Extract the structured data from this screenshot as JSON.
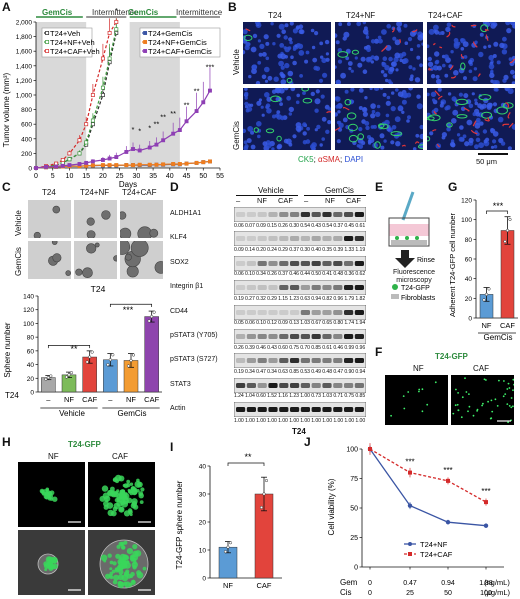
{
  "panels": {
    "A": {
      "label": "A",
      "phases": [
        "GemCis",
        "Intermittence",
        "GemCis",
        "Intermittence"
      ],
      "ylabel": "Tumor volume (mm³)",
      "xlabel": "Days",
      "legend_left": [
        "T24+Veh",
        "T24+NF+Veh",
        "T24+CAF+Veh"
      ],
      "legend_right": [
        "T24+GemCis",
        "T24+NF+GemCis",
        "T24+CAF+GemCis"
      ],
      "xticks": [
        "0",
        "5",
        "10",
        "15",
        "20",
        "25",
        "30",
        "35",
        "40",
        "45",
        "50",
        "55"
      ],
      "yticks": [
        "0",
        "200",
        "400",
        "600",
        "800",
        "1,000",
        "1,200",
        "1,400",
        "1,600",
        "1,800",
        "2,000"
      ],
      "stars": [
        "*",
        "*",
        "*",
        "*",
        "**",
        "**",
        "**",
        "**",
        "**",
        "***"
      ]
    },
    "B": {
      "label": "B",
      "columns": [
        "T24",
        "T24+NF",
        "T24+CAF"
      ],
      "rows": [
        "Vehicle",
        "GemCis"
      ],
      "legend_ck5": "CK5",
      "legend_sep1": "; ",
      "legend_asma": "αSMA",
      "legend_sep2": "; ",
      "legend_dapi": "DAPI",
      "scale": "50 μm"
    },
    "C": {
      "label": "C",
      "columns": [
        "T24",
        "T24+NF",
        "T24+CAF"
      ],
      "rows": [
        "Vehicle",
        "GemCis"
      ],
      "bar_title": "T24",
      "ylabel": "Sphere number",
      "yticks": [
        "0",
        "20",
        "40",
        "60",
        "80",
        "100",
        "120",
        "140"
      ],
      "row_label": "T24",
      "cat_labels": [
        "–",
        "NF",
        "CAF",
        "–",
        "NF",
        "CAF"
      ],
      "groups": [
        "Vehicle",
        "GemCis"
      ],
      "stars_left": "**",
      "stars_right": "***"
    },
    "D": {
      "label": "D",
      "group_vehicle": "Vehicle",
      "group_gemcis": "GemCis",
      "lanes": [
        "–",
        "NF",
        "CAF",
        "–",
        "NF",
        "CAF"
      ],
      "cell_line": "T24",
      "blots": [
        {
          "name": "ALDH1A1",
          "values": "0.06 0.07 0.09 0.15 0.26 0.30 0.54 0.43 0.54 0.37 0.45 0.61"
        },
        {
          "name": "KLF4",
          "values": "0.09 0.14 0.20 0.24 0.29 0.37 0.30 0.40 0.35 0.39 1.33 1.19"
        },
        {
          "name": "SOX2",
          "values": "0.06 0.10 0.34 0.26 0.37 0.46 0.44 0.50 0.41 0.48 0.36 0.62"
        },
        {
          "name": "Integrin β1",
          "values": "0.19 0.27 0.32 0.29 1.15 1.23 0.63 0.94 0.82 0.96 1.79 1.82"
        },
        {
          "name": "CD44",
          "values": "0.05 0.06 0.10 0.12 0.09 0.13 1.03 0.67 0.65 0.80 1.74 1.94"
        },
        {
          "name": "pSTAT3 (Y705)",
          "values": "0.26 0.39 0.46 0.43 0.60 0.75 0.70 0.85 0.61 0.46 0.99 0.96"
        },
        {
          "name": "pSTAT3 (S727)",
          "values": "0.19 0.34 0.47 0.34 0.63 0.85 0.53 0.49 0.48 0.47 0.90 0.94"
        },
        {
          "name": "STAT3",
          "values": "1.24 1.04 0.60 1.52 1.16 1.23 1.00 0.73 1.03 0.71 0.75 0.85"
        },
        {
          "name": "Actin",
          "values": "1.00 1.00 1.00 1.00 1.00 1.00 1.00 1.00 1.00 1.00 1.00 1.00"
        }
      ]
    },
    "E": {
      "label": "E",
      "rinse": "Rinse",
      "step": "Fluorescence microscopy",
      "legend_gfp": "T24-GFP",
      "legend_fib": "Fibroblasts"
    },
    "F": {
      "label": "F",
      "title": "T24-GFP",
      "columns": [
        "NF",
        "CAF"
      ]
    },
    "G": {
      "label": "G",
      "ylabel": "Adherent T24-GFP cell number",
      "yticks": [
        "0",
        "20",
        "40",
        "60",
        "80",
        "100",
        "120"
      ],
      "categories": [
        "NF",
        "CAF"
      ],
      "group": "GemCis",
      "stars": "***"
    },
    "H": {
      "label": "H",
      "title": "T24-GFP",
      "columns": [
        "NF",
        "CAF"
      ]
    },
    "I": {
      "label": "I",
      "ylabel": "T24-GFP sphere number",
      "yticks": [
        "0",
        "10",
        "20",
        "30",
        "40"
      ],
      "categories": [
        "NF",
        "CAF"
      ],
      "stars": "**"
    },
    "J": {
      "label": "J",
      "ylabel": "Cell viability (%)",
      "yticks": [
        "0",
        "25",
        "50",
        "75",
        "100"
      ],
      "legend": [
        "T24+NF",
        "T24+CAF"
      ],
      "gem_label": "Gem",
      "cis_label": "Cis",
      "gem_ticks": [
        "0",
        "0.47",
        "0.94",
        "1.88"
      ],
      "cis_ticks": [
        "0",
        "25",
        "50",
        "100"
      ],
      "gem_unit": "(ng/mL)",
      "cis_unit": "(μg/mL)",
      "stars": [
        "***",
        "***",
        "***"
      ]
    }
  },
  "colors": {
    "veh": "#2b2b2b",
    "nf_veh": "#3d9a3d",
    "caf_veh": "#d42a2a",
    "gemcis": "#3a55a4",
    "nf_gemcis": "#ee7d1e",
    "caf_gemcis": "#8e3fb4",
    "bar_ctrl": "#a8a8a8",
    "bar_nf": "#7dbb5a",
    "bar_caf": "#e2443c",
    "bar_gem": "#5b9bd5",
    "bar_gem_nf": "#f39c32",
    "bar_gem_caf": "#8e44ad"
  },
  "chart_data": [
    {
      "type": "line",
      "panel": "A",
      "xlabel": "Days",
      "ylabel": "Tumor volume (mm³)",
      "xlim": [
        0,
        55
      ],
      "ylim": [
        0,
        2000
      ],
      "series": [
        {
          "name": "T24+Veh",
          "x": [
            0,
            3,
            6,
            8,
            10,
            13,
            15,
            17,
            20,
            22,
            24
          ],
          "y": [
            0,
            20,
            40,
            70,
            120,
            200,
            320,
            600,
            1000,
            1450,
            1850
          ],
          "err": [
            0,
            5,
            10,
            15,
            25,
            40,
            60,
            100,
            150,
            200,
            250
          ]
        },
        {
          "name": "T24+NF+Veh",
          "x": [
            0,
            3,
            6,
            8,
            10,
            13,
            15,
            17,
            20,
            22,
            24
          ],
          "y": [
            0,
            20,
            40,
            70,
            120,
            200,
            350,
            650,
            1100,
            1500,
            1900
          ],
          "err": [
            0,
            5,
            10,
            15,
            25,
            40,
            60,
            100,
            150,
            200,
            250
          ]
        },
        {
          "name": "T24+CAF+Veh",
          "x": [
            0,
            3,
            6,
            8,
            10,
            13,
            15,
            17,
            20,
            22,
            24
          ],
          "y": [
            0,
            25,
            60,
            110,
            200,
            380,
            600,
            1000,
            1500,
            1850,
            2000
          ],
          "err": [
            0,
            5,
            10,
            20,
            40,
            70,
            100,
            150,
            200,
            200,
            200
          ]
        },
        {
          "name": "T24+GemCis",
          "x": [
            0,
            3,
            6,
            8,
            10,
            13,
            15,
            17,
            20,
            22,
            24,
            27,
            29,
            31,
            34,
            36,
            38,
            41,
            43,
            45,
            48,
            50,
            52
          ],
          "y": [
            0,
            10,
            15,
            20,
            25,
            25,
            30,
            30,
            35,
            35,
            35,
            40,
            40,
            40,
            40,
            45,
            45,
            50,
            50,
            60,
            70,
            80,
            90
          ],
          "err": [
            0,
            3,
            3,
            4,
            5,
            5,
            5,
            5,
            6,
            6,
            6,
            6,
            6,
            6,
            6,
            7,
            7,
            8,
            8,
            10,
            12,
            14,
            16
          ]
        },
        {
          "name": "T24+NF+GemCis",
          "x": [
            0,
            3,
            6,
            8,
            10,
            13,
            15,
            17,
            20,
            22,
            24,
            27,
            29,
            31,
            34,
            36,
            38,
            41,
            43,
            45,
            48,
            50,
            52
          ],
          "y": [
            0,
            10,
            15,
            20,
            25,
            25,
            30,
            35,
            40,
            40,
            40,
            40,
            40,
            45,
            45,
            45,
            50,
            55,
            55,
            60,
            70,
            80,
            90
          ],
          "err": [
            0,
            3,
            3,
            4,
            5,
            5,
            5,
            5,
            6,
            6,
            6,
            6,
            6,
            6,
            6,
            7,
            7,
            8,
            8,
            10,
            12,
            14,
            16
          ]
        },
        {
          "name": "T24+CAF+GemCis",
          "x": [
            0,
            3,
            6,
            8,
            10,
            13,
            15,
            17,
            20,
            22,
            24,
            27,
            29,
            31,
            34,
            36,
            38,
            41,
            43,
            45,
            48,
            50,
            52
          ],
          "y": [
            0,
            15,
            20,
            30,
            40,
            55,
            70,
            90,
            110,
            130,
            150,
            220,
            260,
            240,
            280,
            320,
            380,
            470,
            520,
            640,
            780,
            900,
            1060
          ],
          "err": [
            0,
            5,
            8,
            10,
            12,
            15,
            20,
            30,
            40,
            50,
            60,
            80,
            90,
            80,
            90,
            100,
            120,
            150,
            170,
            200,
            250,
            280,
            320
          ]
        }
      ]
    },
    {
      "type": "bar",
      "panel": "C",
      "title": "T24",
      "ylabel": "Sphere number",
      "categories": [
        "–",
        "NF",
        "CAF",
        "–",
        "NF",
        "CAF"
      ],
      "groups": [
        "Vehicle",
        "Vehicle",
        "Vehicle",
        "GemCis",
        "GemCis",
        "GemCis"
      ],
      "values": [
        21,
        25,
        51,
        47,
        46,
        110
      ],
      "err": [
        3,
        4,
        9,
        9,
        10,
        8
      ],
      "ylim": [
        0,
        140
      ]
    },
    {
      "type": "bar",
      "panel": "G",
      "ylabel": "Adherent T24-GFP cell number",
      "categories": [
        "NF",
        "CAF"
      ],
      "values": [
        24,
        89
      ],
      "err": [
        7,
        14
      ],
      "ylim": [
        0,
        120
      ]
    },
    {
      "type": "bar",
      "panel": "I",
      "ylabel": "T24-GFP sphere number",
      "categories": [
        "NF",
        "CAF"
      ],
      "values": [
        11,
        30
      ],
      "err": [
        2,
        6
      ],
      "ylim": [
        0,
        40
      ]
    },
    {
      "type": "line",
      "panel": "J",
      "ylabel": "Cell viability (%)",
      "categories": [
        "0",
        "0.47",
        "0.94",
        "1.88"
      ],
      "ylim": [
        0,
        100
      ],
      "series": [
        {
          "name": "T24+NF",
          "values": [
            100,
            52,
            38,
            35
          ],
          "err": [
            3,
            3,
            2,
            2
          ]
        },
        {
          "name": "T24+CAF",
          "values": [
            100,
            80,
            73,
            55
          ],
          "err": [
            5,
            4,
            3,
            3
          ]
        }
      ]
    }
  ]
}
